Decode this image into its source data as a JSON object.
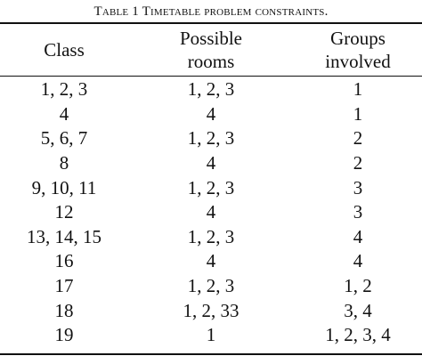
{
  "table": {
    "caption": "Table 1 Timetable problem constraints.",
    "headers": {
      "class": "Class",
      "rooms_line1": "Possible",
      "rooms_line2": "rooms",
      "groups_line1": "Groups",
      "groups_line2": "involved"
    },
    "rows": [
      {
        "class": "1, 2, 3",
        "rooms": "1, 2, 3",
        "groups": "1"
      },
      {
        "class": "4",
        "rooms": "4",
        "groups": "1"
      },
      {
        "class": "5, 6, 7",
        "rooms": "1, 2, 3",
        "groups": "2"
      },
      {
        "class": "8",
        "rooms": "4",
        "groups": "2"
      },
      {
        "class": "9, 10, 11",
        "rooms": "1, 2, 3",
        "groups": "3"
      },
      {
        "class": "12",
        "rooms": "4",
        "groups": "3"
      },
      {
        "class": "13, 14, 15",
        "rooms": "1, 2, 3",
        "groups": "4"
      },
      {
        "class": "16",
        "rooms": "4",
        "groups": "4"
      },
      {
        "class": "17",
        "rooms": "1, 2, 3",
        "groups": "1, 2"
      },
      {
        "class": "18",
        "rooms": "1, 2, 33",
        "groups": "3, 4"
      },
      {
        "class": "19",
        "rooms": "1",
        "groups": "1, 2, 3, 4"
      }
    ]
  }
}
